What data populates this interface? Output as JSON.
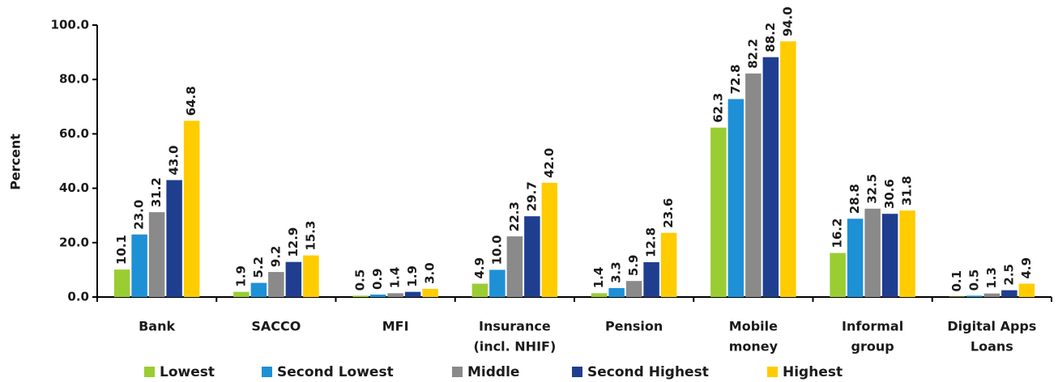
{
  "chart_data": {
    "type": "bar",
    "title": "",
    "xlabel": "",
    "ylabel": "Percent",
    "ylim": [
      0,
      100
    ],
    "yticks": [
      "0.0",
      "20.0",
      "40.0",
      "60.0",
      "80.0",
      "100.0"
    ],
    "grid": false,
    "legend_position": "bottom",
    "categories": [
      [
        "Bank"
      ],
      [
        "SACCO"
      ],
      [
        "MFI"
      ],
      [
        "Insurance",
        "(incl. NHIF)"
      ],
      [
        "Pension"
      ],
      [
        "Mobile",
        "money"
      ],
      [
        "Informal",
        "group"
      ],
      [
        "Digital Apps",
        "Loans"
      ]
    ],
    "series": [
      {
        "name": "Lowest",
        "color": "#9acd32",
        "values": [
          10.1,
          1.9,
          0.5,
          4.9,
          1.4,
          62.3,
          16.2,
          0.1
        ]
      },
      {
        "name": "Second Lowest",
        "color": "#1e90d6",
        "values": [
          23.0,
          5.2,
          0.9,
          10.0,
          3.3,
          72.8,
          28.8,
          0.5
        ]
      },
      {
        "name": "Middle",
        "color": "#8a8a8a",
        "values": [
          31.2,
          9.2,
          1.4,
          22.3,
          5.9,
          82.2,
          32.5,
          1.3
        ]
      },
      {
        "name": "Second Highest",
        "color": "#1f3e8f",
        "values": [
          43.0,
          12.9,
          1.9,
          29.7,
          12.8,
          88.2,
          30.6,
          2.5
        ]
      },
      {
        "name": "Highest",
        "color": "#ffcc00",
        "values": [
          64.8,
          15.3,
          3.0,
          42.0,
          23.6,
          94.0,
          31.8,
          4.9
        ]
      }
    ]
  }
}
